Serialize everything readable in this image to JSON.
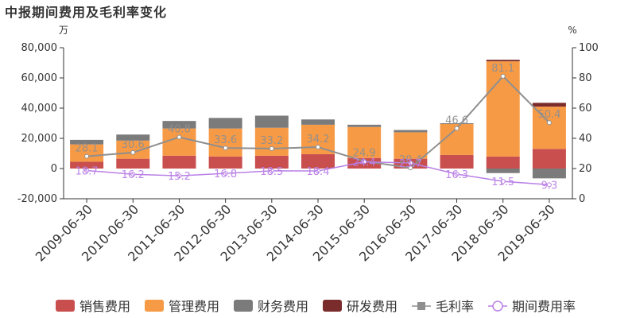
{
  "title": "中报期间费用及毛利率变化",
  "chart_data": {
    "type": "bar",
    "stacked": true,
    "categories": [
      "2009-06-30",
      "2010-06-30",
      "2011-06-30",
      "2012-06-30",
      "2013-06-30",
      "2014-06-30",
      "2015-06-30",
      "2016-06-30",
      "2017-06-30",
      "2018-06-30",
      "2019-06-30"
    ],
    "y_left": {
      "unit": "万",
      "range": [
        -20000,
        80000
      ],
      "ticks": [
        -20000,
        0,
        20000,
        40000,
        60000,
        80000
      ],
      "tick_labels": [
        "-20,000",
        "0",
        "20,000",
        "40,000",
        "60,000",
        "80,000"
      ]
    },
    "y_right": {
      "unit": "%",
      "range": [
        0,
        100
      ],
      "ticks": [
        0,
        20,
        40,
        60,
        80,
        100
      ],
      "tick_labels": [
        "0",
        "20",
        "40",
        "60",
        "80",
        "100"
      ]
    },
    "series": [
      {
        "name": "销售费用",
        "kind": "bar",
        "color": "#c94f4f",
        "values": [
          4500,
          6500,
          8500,
          8000,
          8500,
          9500,
          7000,
          6500,
          9000,
          8000,
          13000
        ]
      },
      {
        "name": "管理费用",
        "kind": "bar",
        "color": "#f79a46",
        "values": [
          11500,
          12000,
          18000,
          18500,
          18500,
          19500,
          20500,
          17500,
          20500,
          63000,
          28000
        ]
      },
      {
        "name": "财务费用",
        "kind": "bar",
        "color": "#7b7b7b",
        "values": [
          3000,
          4000,
          5000,
          7000,
          8000,
          3500,
          1500,
          1500,
          500,
          -3000,
          -6500
        ]
      },
      {
        "name": "研发费用",
        "kind": "bar",
        "color": "#7a2b2b",
        "values": [
          0,
          0,
          0,
          0,
          0,
          0,
          0,
          0,
          0,
          1000,
          2500
        ]
      },
      {
        "name": "毛利率",
        "kind": "line",
        "axis": "right",
        "color": "#8f8f8f",
        "values": [
          28.1,
          30.6,
          40.8,
          33.6,
          33.2,
          34.2,
          24.9,
          20.4,
          46.6,
          81.1,
          50.4
        ],
        "labels": [
          "28.1",
          "30.6",
          "40.8",
          "33.6",
          "33.2",
          "34.2",
          "24.9",
          "20.4",
          "46.6",
          "81.1",
          "50.4"
        ]
      },
      {
        "name": "期间费用率",
        "kind": "line",
        "axis": "right",
        "color": "#b980e6",
        "values": [
          18.7,
          16.2,
          15.2,
          16.8,
          18.5,
          18.4,
          24.4,
          23.7,
          16.3,
          11.5,
          9.3
        ],
        "labels": [
          "18.7",
          "16.2",
          "15.2",
          "16.8",
          "18.5",
          "18.4",
          "24.4",
          "23.7",
          "16.3",
          "11.5",
          "9.3"
        ]
      }
    ],
    "legend_position": "bottom",
    "grid": false
  }
}
